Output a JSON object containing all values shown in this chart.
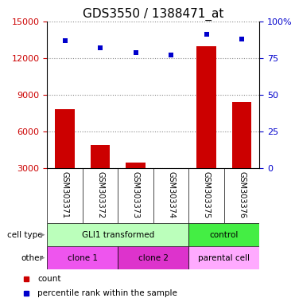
{
  "title": "GDS3550 / 1388471_at",
  "samples": [
    "GSM303371",
    "GSM303372",
    "GSM303373",
    "GSM303374",
    "GSM303375",
    "GSM303376"
  ],
  "counts": [
    7800,
    4900,
    3500,
    2800,
    13000,
    8400
  ],
  "percentiles": [
    87,
    82,
    79,
    77,
    91,
    88
  ],
  "ylim_left": [
    3000,
    15000
  ],
  "yticks_left": [
    3000,
    6000,
    9000,
    12000,
    15000
  ],
  "ylim_right": [
    0,
    100
  ],
  "yticks_right": [
    0,
    25,
    50,
    75,
    100
  ],
  "yticklabels_right": [
    "0",
    "25",
    "50",
    "75",
    "100%"
  ],
  "bar_color": "#cc0000",
  "dot_color": "#0000cc",
  "bar_bottom": 3000,
  "cell_type_labels": [
    {
      "label": "GLI1 transformed",
      "start": 0,
      "end": 4,
      "color": "#bbffbb"
    },
    {
      "label": "control",
      "start": 4,
      "end": 6,
      "color": "#44ee44"
    }
  ],
  "other_labels": [
    {
      "label": "clone 1",
      "start": 0,
      "end": 2,
      "color": "#ee55ee"
    },
    {
      "label": "clone 2",
      "start": 2,
      "end": 4,
      "color": "#dd33cc"
    },
    {
      "label": "parental cell",
      "start": 4,
      "end": 6,
      "color": "#ffaaff"
    }
  ],
  "bg_color": "#ffffff",
  "tick_label_color_left": "#cc0000",
  "tick_label_color_right": "#0000cc",
  "grid_color": "#888888",
  "bar_width": 0.55,
  "label_fontsize": 8,
  "title_fontsize": 11,
  "sample_label_color": "#888888",
  "sample_bg_color": "#cccccc"
}
